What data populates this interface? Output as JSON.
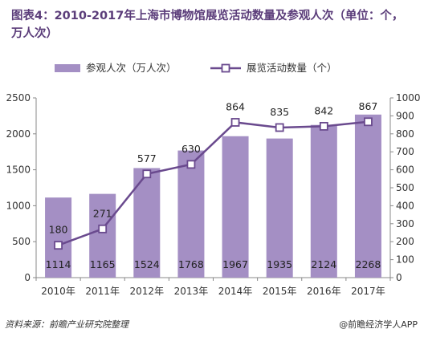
{
  "title": "图表4：2010-2017年上海市博物馆展览活动数量及参观人次（单位：个，万人次）",
  "source": "资料来源：前瞻产业研究院整理",
  "brand": "@前瞻经济学人APP",
  "colors": {
    "bar": "#a48fc4",
    "line": "#6a4a8e",
    "marker_fill": "#ffffff",
    "axis": "#888888",
    "grid": "#d9d9d9"
  },
  "chart_data": {
    "type": "bar+line",
    "categories": [
      "2010年",
      "2011年",
      "2012年",
      "2013年",
      "2014年",
      "2015年",
      "2016年",
      "2017年"
    ],
    "series": [
      {
        "name": "参观人次（万人次）",
        "type": "bar",
        "axis": "left",
        "values": [
          1114,
          1165,
          1524,
          1768,
          1967,
          1935,
          2124,
          2268
        ]
      },
      {
        "name": "展览活动数量（个）",
        "type": "line",
        "axis": "right",
        "values": [
          180,
          271,
          577,
          630,
          864,
          835,
          842,
          867
        ]
      }
    ],
    "y_left": {
      "min": 0,
      "max": 2500,
      "ticks": [
        0,
        500,
        1000,
        1500,
        2000,
        2500
      ]
    },
    "y_right": {
      "min": 0,
      "max": 1000,
      "ticks": [
        0,
        100,
        200,
        300,
        400,
        500,
        600,
        700,
        800,
        900,
        1000
      ]
    },
    "legend_position": "top",
    "grid": false
  }
}
